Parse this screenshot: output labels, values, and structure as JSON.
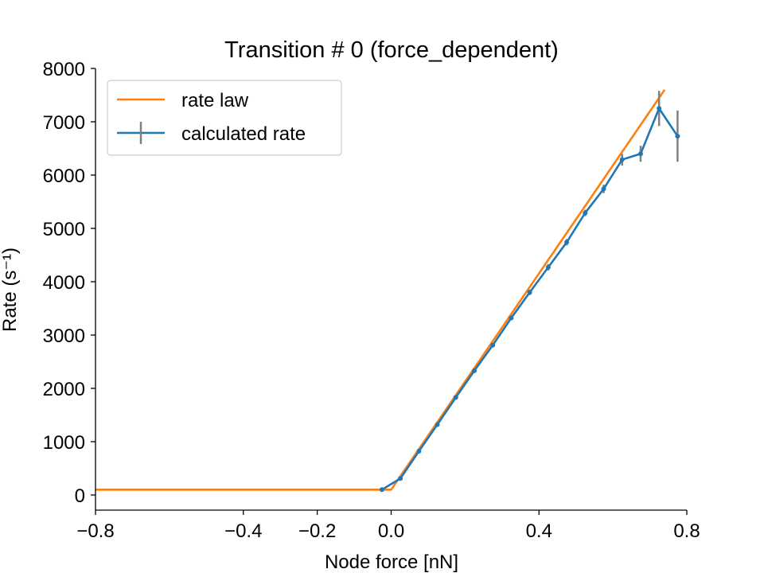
{
  "chart_data": {
    "type": "line",
    "title": "Transition # 0 (force_dependent)",
    "xlabel": "Node force [nN]",
    "ylabel": "Rate (s⁻¹)",
    "xlim": [
      -0.8,
      0.8
    ],
    "ylim": [
      -300,
      8000
    ],
    "xticks": [
      -0.8,
      -0.4,
      -0.2,
      0.0,
      0.4,
      0.8
    ],
    "xtick_labels": [
      "−0.8",
      "−0.4",
      "−0.2",
      "0.0",
      "0.4",
      "0.8"
    ],
    "yticks": [
      0,
      1000,
      2000,
      3000,
      4000,
      5000,
      6000,
      7000,
      8000
    ],
    "ytick_labels": [
      "0",
      "1000",
      "2000",
      "3000",
      "4000",
      "5000",
      "6000",
      "7000",
      "8000"
    ],
    "grid": false,
    "legend_position": "top-left",
    "series": [
      {
        "name": "rate law",
        "color": "#ff7f0e",
        "x": [
          -0.8,
          0.0,
          0.74
        ],
        "y": [
          100,
          100,
          7600
        ]
      },
      {
        "name": "calculated rate",
        "color": "#1f77b4",
        "errorbar_color": "#808080",
        "x": [
          -0.025,
          0.025,
          0.075,
          0.125,
          0.175,
          0.225,
          0.275,
          0.325,
          0.375,
          0.425,
          0.475,
          0.525,
          0.575,
          0.625,
          0.675,
          0.725,
          0.775
        ],
        "y": [
          100,
          310,
          820,
          1320,
          1830,
          2330,
          2810,
          3320,
          3800,
          4270,
          4740,
          5290,
          5740,
          6290,
          6400,
          7250,
          6730
        ],
        "yerr": [
          15,
          25,
          30,
          35,
          35,
          35,
          40,
          40,
          50,
          60,
          60,
          60,
          80,
          110,
          150,
          330,
          480
        ]
      }
    ]
  }
}
